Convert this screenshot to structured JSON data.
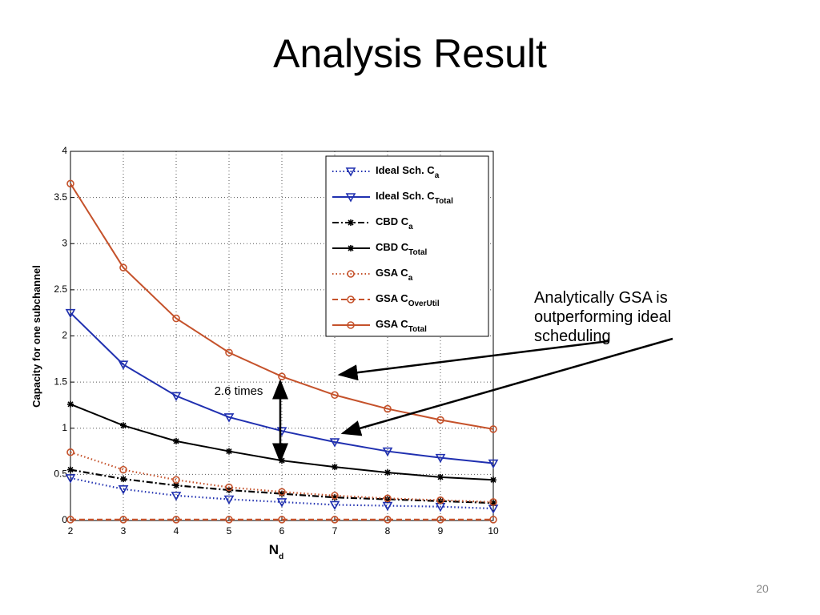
{
  "title": "Analysis Result",
  "page_number": "20",
  "annotations": {
    "ratio": "2.6 times",
    "note": "Analytically GSA is outperforming ideal scheduling"
  },
  "chart_data": {
    "type": "line",
    "ylabel": "Capacity for one subchannel",
    "xlabel": "N",
    "xlabel_sub": "d",
    "x": [
      2,
      3,
      4,
      5,
      6,
      7,
      8,
      9,
      10
    ],
    "xlim": [
      2,
      10
    ],
    "xticks": [
      2,
      3,
      4,
      5,
      6,
      7,
      8,
      9,
      10
    ],
    "ylim": [
      0,
      4
    ],
    "yticks": [
      0,
      0.5,
      1,
      1.5,
      2,
      2.5,
      3,
      3.5,
      4
    ],
    "grid": true,
    "legend": "upper-right",
    "series": [
      {
        "name": "Ideal Sch. C",
        "subscript": "a",
        "color": "#2030b0",
        "line_style": "dotted",
        "marker": "triangle-down",
        "values": [
          0.46,
          0.34,
          0.27,
          0.23,
          0.2,
          0.17,
          0.16,
          0.15,
          0.13
        ]
      },
      {
        "name": "Ideal Sch. C",
        "subscript": "Total",
        "color": "#2030b0",
        "line_style": "solid",
        "marker": "triangle-down",
        "values": [
          2.25,
          1.69,
          1.35,
          1.12,
          0.97,
          0.85,
          0.75,
          0.68,
          0.62
        ]
      },
      {
        "name": "CBD C",
        "subscript": "a",
        "color": "#000000",
        "line_style": "dashdot",
        "marker": "star",
        "values": [
          0.55,
          0.45,
          0.38,
          0.33,
          0.29,
          0.25,
          0.23,
          0.21,
          0.19
        ]
      },
      {
        "name": "CBD C",
        "subscript": "Total",
        "color": "#000000",
        "line_style": "solid",
        "marker": "star",
        "values": [
          1.26,
          1.03,
          0.86,
          0.75,
          0.65,
          0.58,
          0.52,
          0.47,
          0.44
        ]
      },
      {
        "name": "GSA C",
        "subscript": "a",
        "color": "#c5522b",
        "line_style": "dotted",
        "marker": "circle",
        "values": [
          0.74,
          0.55,
          0.44,
          0.36,
          0.31,
          0.27,
          0.24,
          0.22,
          0.2
        ]
      },
      {
        "name": "GSA C",
        "subscript": "OverUtil",
        "color": "#c5522b",
        "line_style": "dashed",
        "marker": "circle",
        "values": [
          0.01,
          0.01,
          0.01,
          0.01,
          0.01,
          0.01,
          0.01,
          0.01,
          0.01
        ]
      },
      {
        "name": "GSA C",
        "subscript": "Total",
        "color": "#c5522b",
        "line_style": "solid",
        "marker": "circle",
        "values": [
          3.65,
          2.74,
          2.19,
          1.82,
          1.56,
          1.36,
          1.21,
          1.09,
          0.99
        ]
      }
    ]
  }
}
